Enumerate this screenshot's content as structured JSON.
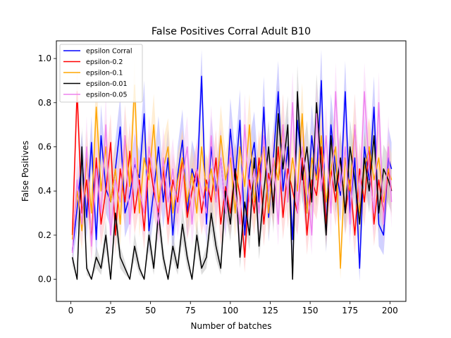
{
  "chart_data": {
    "type": "line",
    "title": "False Positives Corral Adult B10",
    "xlabel": "Number of batches",
    "ylabel": "False Positives",
    "xlim": [
      -9,
      210
    ],
    "ylim": [
      -0.1,
      1.08
    ],
    "xticks": [
      0,
      25,
      50,
      75,
      100,
      125,
      150,
      175,
      200
    ],
    "yticks": [
      0.0,
      0.2,
      0.4,
      0.6,
      0.8,
      1.0
    ],
    "xtick_labels": [
      "0",
      "25",
      "50",
      "75",
      "100",
      "125",
      "150",
      "175",
      "200"
    ],
    "ytick_labels": [
      "0.0",
      "0.2",
      "0.4",
      "0.6",
      "0.8",
      "1.0"
    ],
    "grid": false,
    "legend_position": "top-left",
    "x": [
      1,
      4,
      7,
      10,
      13,
      16,
      19,
      22,
      25,
      28,
      31,
      34,
      37,
      40,
      43,
      46,
      49,
      52,
      55,
      58,
      61,
      64,
      67,
      70,
      73,
      76,
      79,
      82,
      85,
      88,
      91,
      94,
      97,
      100,
      103,
      106,
      109,
      112,
      115,
      118,
      121,
      124,
      127,
      130,
      133,
      136,
      139,
      142,
      145,
      148,
      151,
      154,
      157,
      160,
      163,
      166,
      169,
      172,
      175,
      178,
      181,
      184,
      187,
      190,
      193,
      196,
      199,
      201
    ],
    "series": [
      {
        "name": "epsilon Corral",
        "color": "#0000ff",
        "band_color": "#9999ff",
        "values": [
          0.13,
          0.32,
          0.55,
          0.28,
          0.62,
          0.18,
          0.65,
          0.41,
          0.35,
          0.5,
          0.69,
          0.3,
          0.38,
          0.52,
          0.46,
          0.75,
          0.22,
          0.4,
          0.6,
          0.35,
          0.55,
          0.2,
          0.47,
          0.63,
          0.3,
          0.5,
          0.42,
          0.92,
          0.25,
          0.6,
          0.4,
          0.55,
          0.3,
          0.68,
          0.45,
          0.72,
          0.2,
          0.5,
          0.62,
          0.35,
          0.78,
          0.28,
          0.55,
          0.85,
          0.4,
          0.6,
          0.18,
          0.72,
          0.5,
          0.3,
          0.65,
          0.45,
          0.9,
          0.22,
          0.7,
          0.5,
          0.38,
          0.85,
          0.3,
          0.55,
          0.05,
          0.6,
          0.45,
          0.78,
          0.25,
          0.2,
          0.55,
          0.5
        ],
        "band_halfwidth": [
          0.06,
          0.1,
          0.12,
          0.1,
          0.12,
          0.09,
          0.14,
          0.11,
          0.12,
          0.13,
          0.14,
          0.11,
          0.12,
          0.14,
          0.12,
          0.15,
          0.1,
          0.12,
          0.14,
          0.12,
          0.13,
          0.1,
          0.13,
          0.14,
          0.11,
          0.13,
          0.12,
          0.12,
          0.1,
          0.14,
          0.12,
          0.13,
          0.11,
          0.14,
          0.13,
          0.14,
          0.1,
          0.13,
          0.14,
          0.12,
          0.14,
          0.11,
          0.13,
          0.14,
          0.12,
          0.14,
          0.09,
          0.14,
          0.13,
          0.11,
          0.14,
          0.12,
          0.14,
          0.1,
          0.14,
          0.13,
          0.12,
          0.14,
          0.11,
          0.13,
          0.06,
          0.14,
          0.12,
          0.14,
          0.1,
          0.09,
          0.14,
          0.12
        ]
      },
      {
        "name": "epsilon-0.2",
        "color": "#ff0000",
        "band_color": "#ffb3b3",
        "values": [
          0.2,
          0.85,
          0.3,
          0.45,
          0.18,
          0.55,
          0.25,
          0.4,
          0.62,
          0.2,
          0.5,
          0.35,
          0.58,
          0.3,
          0.45,
          0.22,
          0.55,
          0.4,
          0.3,
          0.5,
          0.25,
          0.45,
          0.35,
          0.55,
          0.28,
          0.4,
          0.5,
          0.3,
          0.45,
          0.35,
          0.55,
          0.25,
          0.42,
          0.3,
          0.5,
          0.38,
          0.1,
          0.45,
          0.3,
          0.55,
          0.25,
          0.48,
          0.35,
          0.6,
          0.28,
          0.5,
          0.4,
          0.3,
          0.55,
          0.2,
          0.45,
          0.38,
          0.6,
          0.25,
          0.5,
          0.35,
          0.55,
          0.3,
          0.45,
          0.2,
          0.5,
          0.35,
          0.6,
          0.25,
          0.45,
          0.3,
          0.5,
          0.4
        ],
        "band_halfwidth": [
          0.08,
          0.12,
          0.1,
          0.12,
          0.09,
          0.13,
          0.1,
          0.12,
          0.13,
          0.09,
          0.12,
          0.11,
          0.13,
          0.1,
          0.12,
          0.09,
          0.13,
          0.12,
          0.1,
          0.12,
          0.1,
          0.12,
          0.11,
          0.13,
          0.1,
          0.12,
          0.12,
          0.1,
          0.12,
          0.11,
          0.13,
          0.1,
          0.12,
          0.1,
          0.12,
          0.11,
          0.07,
          0.12,
          0.1,
          0.13,
          0.1,
          0.12,
          0.11,
          0.13,
          0.1,
          0.12,
          0.12,
          0.1,
          0.13,
          0.09,
          0.12,
          0.11,
          0.13,
          0.1,
          0.12,
          0.11,
          0.13,
          0.1,
          0.12,
          0.09,
          0.12,
          0.11,
          0.13,
          0.1,
          0.12,
          0.1,
          0.12,
          0.12
        ]
      },
      {
        "name": "epsilon-0.1",
        "color": "#ffa500",
        "band_color": "#ffd9a0",
        "values": [
          0.18,
          0.4,
          0.22,
          0.55,
          0.3,
          0.78,
          0.4,
          0.6,
          0.35,
          0.5,
          0.25,
          0.65,
          0.42,
          0.88,
          0.3,
          0.55,
          0.45,
          0.7,
          0.35,
          0.5,
          0.6,
          0.3,
          0.45,
          0.55,
          0.35,
          0.48,
          0.3,
          0.6,
          0.4,
          0.5,
          0.35,
          0.65,
          0.45,
          0.55,
          0.3,
          0.6,
          0.42,
          0.7,
          0.35,
          0.5,
          0.6,
          0.3,
          0.55,
          0.45,
          0.7,
          0.35,
          0.55,
          0.4,
          0.75,
          0.3,
          0.55,
          0.45,
          0.65,
          0.35,
          0.5,
          0.6,
          0.05,
          0.55,
          0.4,
          0.7,
          0.3,
          0.5,
          0.6,
          0.45,
          0.55,
          0.35,
          0.5,
          0.45
        ],
        "band_halfwidth": [
          0.07,
          0.12,
          0.09,
          0.13,
          0.11,
          0.14,
          0.12,
          0.13,
          0.12,
          0.13,
          0.1,
          0.14,
          0.12,
          0.12,
          0.11,
          0.13,
          0.12,
          0.14,
          0.12,
          0.13,
          0.13,
          0.11,
          0.12,
          0.13,
          0.12,
          0.12,
          0.11,
          0.13,
          0.12,
          0.13,
          0.12,
          0.14,
          0.12,
          0.13,
          0.11,
          0.13,
          0.12,
          0.14,
          0.12,
          0.13,
          0.13,
          0.11,
          0.13,
          0.12,
          0.14,
          0.12,
          0.13,
          0.12,
          0.14,
          0.11,
          0.13,
          0.12,
          0.14,
          0.12,
          0.13,
          0.13,
          0.05,
          0.13,
          0.12,
          0.14,
          0.11,
          0.13,
          0.13,
          0.12,
          0.13,
          0.12,
          0.13,
          0.12
        ]
      },
      {
        "name": "epsilon-0.01",
        "color": "#000000",
        "band_color": "#b3b3b3",
        "values": [
          0.1,
          0.0,
          0.6,
          0.05,
          0.0,
          0.1,
          0.05,
          0.2,
          0.0,
          0.3,
          0.1,
          0.05,
          0.0,
          0.15,
          0.05,
          0.0,
          0.2,
          0.05,
          0.3,
          0.1,
          0.0,
          0.15,
          0.05,
          0.25,
          0.1,
          0.0,
          0.2,
          0.05,
          0.1,
          0.3,
          0.15,
          0.05,
          0.4,
          0.25,
          0.5,
          0.1,
          0.35,
          0.2,
          0.55,
          0.15,
          0.4,
          0.6,
          0.3,
          0.75,
          0.5,
          0.7,
          0.0,
          0.85,
          0.45,
          0.6,
          0.35,
          0.8,
          0.5,
          0.2,
          0.65,
          0.4,
          0.55,
          0.3,
          0.6,
          0.45,
          0.25,
          0.55,
          0.4,
          0.65,
          0.3,
          0.5,
          0.45,
          0.4
        ],
        "band_halfwidth": [
          0.04,
          0.0,
          0.09,
          0.03,
          0.0,
          0.05,
          0.03,
          0.07,
          0.0,
          0.08,
          0.05,
          0.03,
          0.0,
          0.06,
          0.03,
          0.0,
          0.07,
          0.03,
          0.08,
          0.05,
          0.0,
          0.06,
          0.03,
          0.08,
          0.05,
          0.0,
          0.07,
          0.03,
          0.05,
          0.08,
          0.06,
          0.03,
          0.1,
          0.08,
          0.11,
          0.05,
          0.09,
          0.07,
          0.12,
          0.06,
          0.1,
          0.12,
          0.09,
          0.13,
          0.11,
          0.13,
          0.0,
          0.12,
          0.11,
          0.12,
          0.1,
          0.13,
          0.11,
          0.07,
          0.12,
          0.1,
          0.12,
          0.09,
          0.12,
          0.11,
          0.08,
          0.12,
          0.1,
          0.12,
          0.09,
          0.11,
          0.11,
          0.1
        ]
      },
      {
        "name": "epsilon-0.05",
        "color": "#ee82ee",
        "band_color": "#f7c6f7",
        "values": [
          0.12,
          0.45,
          0.25,
          0.6,
          0.15,
          0.5,
          0.3,
          0.7,
          0.2,
          0.45,
          0.35,
          0.65,
          0.25,
          0.55,
          0.4,
          0.3,
          0.6,
          0.45,
          0.25,
          0.55,
          0.35,
          0.5,
          0.3,
          0.45,
          0.6,
          0.25,
          0.5,
          0.4,
          0.3,
          0.65,
          0.35,
          0.55,
          0.3,
          0.6,
          0.4,
          0.25,
          0.7,
          0.35,
          0.5,
          0.3,
          0.65,
          0.4,
          0.55,
          0.25,
          0.7,
          0.35,
          0.8,
          0.3,
          0.6,
          0.45,
          0.2,
          0.75,
          0.4,
          0.65,
          0.3,
          0.85,
          0.4,
          0.6,
          0.25,
          0.7,
          0.35,
          0.85,
          0.5,
          0.3,
          0.8,
          0.25,
          0.6,
          0.35
        ],
        "band_halfwidth": [
          0.06,
          0.13,
          0.1,
          0.14,
          0.08,
          0.14,
          0.11,
          0.14,
          0.09,
          0.13,
          0.12,
          0.14,
          0.1,
          0.14,
          0.13,
          0.11,
          0.14,
          0.13,
          0.1,
          0.14,
          0.12,
          0.14,
          0.11,
          0.13,
          0.14,
          0.1,
          0.14,
          0.13,
          0.11,
          0.14,
          0.12,
          0.14,
          0.11,
          0.14,
          0.13,
          0.1,
          0.14,
          0.12,
          0.14,
          0.11,
          0.14,
          0.13,
          0.14,
          0.1,
          0.14,
          0.12,
          0.14,
          0.11,
          0.14,
          0.13,
          0.09,
          0.14,
          0.13,
          0.14,
          0.11,
          0.13,
          0.13,
          0.14,
          0.1,
          0.14,
          0.12,
          0.13,
          0.14,
          0.11,
          0.14,
          0.1,
          0.14,
          0.12
        ]
      }
    ]
  }
}
